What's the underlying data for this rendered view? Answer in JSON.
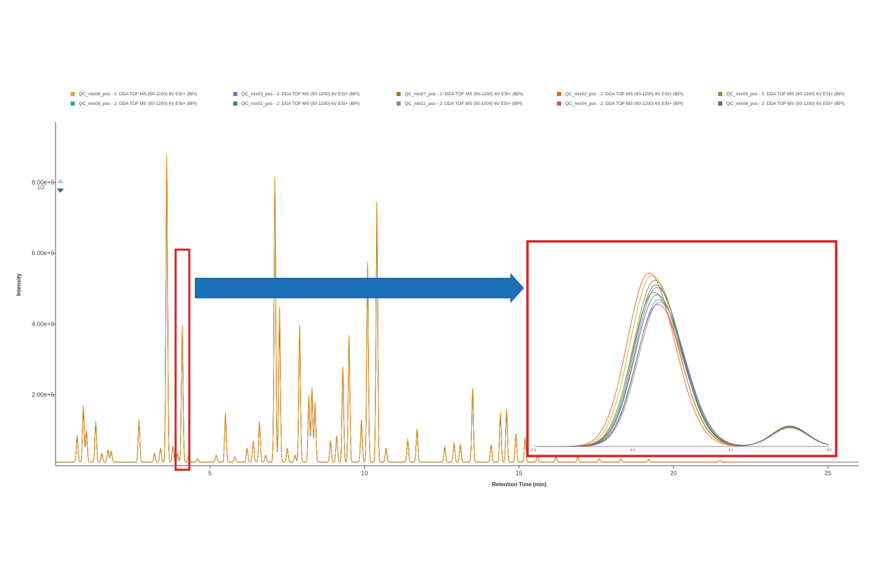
{
  "legend": {
    "page": "1/2",
    "entries": [
      {
        "label": "QC_mix06_pos - 2: DDA TOF MS (50-1200) 6V ESI+ (BPI)",
        "color": "#e6a823"
      },
      {
        "label": "QC_mix03_pos - 2: DDA TOF MS (50-1200) 6V ESI+ (BPI)",
        "color": "#7b77b0"
      },
      {
        "label": "QC_mix07_pos - 2: DDA TOF MS (50-1200) 6V ESI+ (BPI)",
        "color": "#a67c1e"
      },
      {
        "label": "QC_mix02_pos - 2: DDA TOF MS (50-1200) 6V ESI+ (BPI)",
        "color": "#e2622a"
      },
      {
        "label": "QC_mix05_pos - 2: DDA TOF MS (50-1200) 6V ESI+ (BPI)",
        "color": "#5fa83a"
      },
      {
        "label": "QC_mix09_pos - 2: DDA TOF MS (50-1200) 6V ESI+ (BPI)",
        "color": "#2ba89a"
      },
      {
        "label": "QC_mix01_pos - 2: DDA TOF MS (50-1200) 6V ESI+ (BPI)",
        "color": "#28945a"
      },
      {
        "label": "QC_mix11_pos - 2: DDA TOF MS (50-1200) 6V ESI+ (BPI)",
        "color": "#8a8a9a"
      },
      {
        "label": "QC_mix04_pos - 2: DDA TOF MS (50-1200) 6V ESI+ (BPI)",
        "color": "#d0459e"
      },
      {
        "label": "QC_mix08_pos - 2: DDA TOF MS (50-1200) 6V ESI+ (BPI)",
        "color": "#6a6a6a"
      }
    ]
  },
  "colors": {
    "highlight_box": "#d92027",
    "arrow": "#1a6fb5",
    "axis": "#555555",
    "baseline_trace": "#7a7064"
  },
  "chart_data": {
    "type": "line",
    "title": "",
    "xlabel": "Retention Time (min)",
    "ylabel": "Intensity",
    "xlim": [
      0,
      26
    ],
    "ylim": [
      0,
      9700000.0
    ],
    "x_ticks": [
      5,
      10,
      15,
      20,
      25
    ],
    "x_tick_labels": [
      "5",
      "10",
      "15",
      "20",
      "25"
    ],
    "y_ticks": [
      2000000,
      4000000,
      6000000,
      8000000
    ],
    "y_tick_labels": [
      "2.00e+6",
      "4.00e+6",
      "6.00e+6",
      "8.00e+6"
    ],
    "baseline": 100000,
    "peaks": [
      {
        "rt": 0.7,
        "intensity": 850000
      },
      {
        "rt": 0.9,
        "intensity": 1700000
      },
      {
        "rt": 1.0,
        "intensity": 1000000
      },
      {
        "rt": 1.3,
        "intensity": 1250000
      },
      {
        "rt": 1.5,
        "intensity": 350000
      },
      {
        "rt": 1.7,
        "intensity": 450000
      },
      {
        "rt": 1.8,
        "intensity": 420000
      },
      {
        "rt": 2.7,
        "intensity": 1300000
      },
      {
        "rt": 3.2,
        "intensity": 350000
      },
      {
        "rt": 3.4,
        "intensity": 500000
      },
      {
        "rt": 3.6,
        "intensity": 8800000
      },
      {
        "rt": 3.8,
        "intensity": 550000
      },
      {
        "rt": 3.95,
        "intensity": 350000
      },
      {
        "rt": 4.1,
        "intensity": 4000000
      },
      {
        "rt": 4.3,
        "intensity": 250000
      },
      {
        "rt": 4.6,
        "intensity": 200000
      },
      {
        "rt": 5.2,
        "intensity": 300000
      },
      {
        "rt": 5.5,
        "intensity": 1500000
      },
      {
        "rt": 5.8,
        "intensity": 250000
      },
      {
        "rt": 6.2,
        "intensity": 500000
      },
      {
        "rt": 6.4,
        "intensity": 700000
      },
      {
        "rt": 6.6,
        "intensity": 1250000
      },
      {
        "rt": 6.8,
        "intensity": 300000
      },
      {
        "rt": 7.1,
        "intensity": 8200000
      },
      {
        "rt": 7.25,
        "intensity": 4500000
      },
      {
        "rt": 7.5,
        "intensity": 500000
      },
      {
        "rt": 7.75,
        "intensity": 300000
      },
      {
        "rt": 7.9,
        "intensity": 4000000
      },
      {
        "rt": 8.2,
        "intensity": 2000000
      },
      {
        "rt": 8.3,
        "intensity": 2200000
      },
      {
        "rt": 8.4,
        "intensity": 1800000
      },
      {
        "rt": 8.9,
        "intensity": 700000
      },
      {
        "rt": 9.1,
        "intensity": 850000
      },
      {
        "rt": 9.3,
        "intensity": 2800000
      },
      {
        "rt": 9.5,
        "intensity": 3700000
      },
      {
        "rt": 9.9,
        "intensity": 1300000
      },
      {
        "rt": 10.1,
        "intensity": 5800000
      },
      {
        "rt": 10.4,
        "intensity": 7500000
      },
      {
        "rt": 10.7,
        "intensity": 500000
      },
      {
        "rt": 11.4,
        "intensity": 750000
      },
      {
        "rt": 11.7,
        "intensity": 1050000
      },
      {
        "rt": 12.6,
        "intensity": 550000
      },
      {
        "rt": 12.9,
        "intensity": 650000
      },
      {
        "rt": 13.1,
        "intensity": 600000
      },
      {
        "rt": 13.5,
        "intensity": 2200000
      },
      {
        "rt": 14.1,
        "intensity": 600000
      },
      {
        "rt": 14.4,
        "intensity": 1500000
      },
      {
        "rt": 14.6,
        "intensity": 1600000
      },
      {
        "rt": 14.9,
        "intensity": 900000
      },
      {
        "rt": 15.2,
        "intensity": 800000
      },
      {
        "rt": 15.6,
        "intensity": 300000
      },
      {
        "rt": 16.2,
        "intensity": 250000
      },
      {
        "rt": 16.9,
        "intensity": 250000
      },
      {
        "rt": 17.6,
        "intensity": 200000
      },
      {
        "rt": 18.3,
        "intensity": 200000
      },
      {
        "rt": 19.2,
        "intensity": 180000
      },
      {
        "rt": 21.5,
        "intensity": 150000
      }
    ],
    "highlight_window": {
      "xmin": 3.8,
      "xmax": 4.3
    },
    "inset": {
      "x_ticks": [
        3.9,
        4.0,
        4.1,
        4.2
      ],
      "x_tick_labels": [
        "3.9",
        "4.0",
        "4.1",
        "4.2"
      ],
      "xlim": [
        3.9,
        4.2
      ],
      "ylim": [
        0,
        4000000
      ],
      "series": [
        {
          "name": "QC_mix06_pos",
          "apex_rt": 4.02,
          "height": 3550000
        },
        {
          "name": "QC_mix03_pos",
          "apex_rt": 4.025,
          "height": 3300000
        },
        {
          "name": "QC_mix07_pos",
          "apex_rt": 4.022,
          "height": 3200000
        },
        {
          "name": "QC_mix02_pos",
          "apex_rt": 4.017,
          "height": 3600000
        },
        {
          "name": "QC_mix05_pos",
          "apex_rt": 4.023,
          "height": 3450000
        },
        {
          "name": "QC_mix09_pos",
          "apex_rt": 4.027,
          "height": 3050000
        },
        {
          "name": "QC_mix01_pos",
          "apex_rt": 4.025,
          "height": 3150000
        },
        {
          "name": "QC_mix11_pos",
          "apex_rt": 4.028,
          "height": 3000000
        },
        {
          "name": "QC_mix04_pos",
          "apex_rt": 4.026,
          "height": 2950000
        },
        {
          "name": "QC_mix08_pos",
          "apex_rt": 4.024,
          "height": 3350000
        }
      ],
      "secondary_peak": {
        "apex_rt": 4.16,
        "height": 420000
      }
    }
  }
}
